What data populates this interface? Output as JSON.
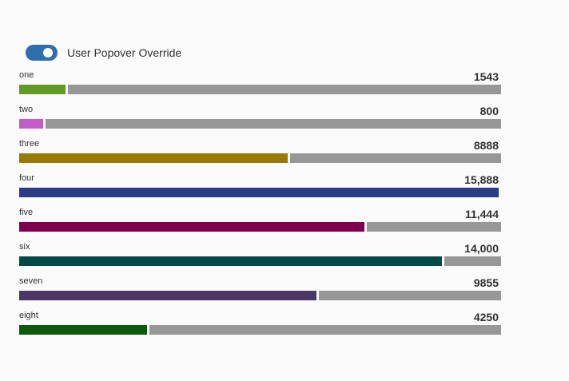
{
  "toggle": {
    "label": "User Popover Override",
    "on": true,
    "color": "#2f6fb0"
  },
  "chart_data": {
    "type": "bar",
    "max": 15888,
    "categories": [
      "one",
      "two",
      "three",
      "four",
      "five",
      "six",
      "seven",
      "eight"
    ],
    "values": [
      1543,
      800,
      8888,
      15888,
      11444,
      14000,
      9855,
      4250
    ],
    "value_labels": [
      "1543",
      "800",
      "8888",
      "15,888",
      "11,444",
      "14,000",
      "9855",
      "4250"
    ],
    "colors": [
      "#629a24",
      "#c35cc9",
      "#987a00",
      "#2c3b85",
      "#800050",
      "#004a4a",
      "#4b3668",
      "#0e5a0c"
    ],
    "remainder_color": "#979797"
  }
}
